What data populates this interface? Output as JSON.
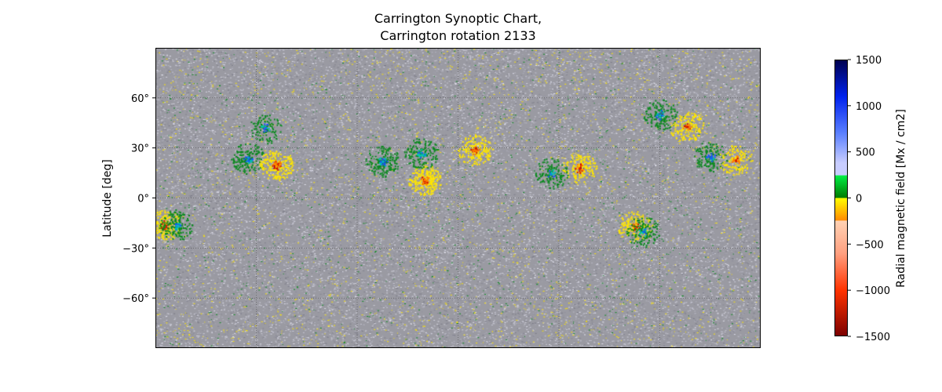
{
  "chart_data": {
    "type": "heatmap",
    "title_lines": [
      "Carrington Synoptic Chart,",
      "Carrington rotation 2133"
    ],
    "ylabel": "Latitude [deg]",
    "xlabel": "",
    "y_ticks": [
      {
        "value": 60,
        "label": "60°"
      },
      {
        "value": 30,
        "label": "30°"
      },
      {
        "value": 0,
        "label": "0°"
      },
      {
        "value": -30,
        "label": "−30°"
      },
      {
        "value": -60,
        "label": "−60°"
      }
    ],
    "ylim": [
      -90,
      90
    ],
    "xlim": [
      0,
      360
    ],
    "grid": true,
    "colorbar": {
      "label": "Radial magnetic field [Mx / cm2]",
      "range": [
        -1500,
        1500
      ],
      "ticks": [
        {
          "value": 1500,
          "label": "1500"
        },
        {
          "value": 1000,
          "label": "1000"
        },
        {
          "value": 500,
          "label": "500"
        },
        {
          "value": 0,
          "label": "0"
        },
        {
          "value": -500,
          "label": "−500"
        },
        {
          "value": -1000,
          "label": "−1000"
        },
        {
          "value": -1500,
          "label": "−1500"
        }
      ],
      "color_stops": [
        {
          "value": 1500,
          "color": "#00004c"
        },
        {
          "value": 1100,
          "color": "#0022ee"
        },
        {
          "value": 700,
          "color": "#5b80ff"
        },
        {
          "value": 380,
          "color": "#c8cdff"
        },
        {
          "value": 250,
          "color": "#c8cdff"
        },
        {
          "value": 240,
          "color": "#00ee44"
        },
        {
          "value": 0,
          "color": "#007a00"
        },
        {
          "value": 0,
          "color": "#ffff00"
        },
        {
          "value": -240,
          "color": "#ff8c00"
        },
        {
          "value": -250,
          "color": "#ffd2b4"
        },
        {
          "value": -600,
          "color": "#ffa080"
        },
        {
          "value": -1000,
          "color": "#ff3300"
        },
        {
          "value": -1500,
          "color": "#7a0000"
        }
      ]
    },
    "background_color": "#9a9aa2",
    "positive_color": "#0a8a1e",
    "negative_color": "#ffe600",
    "active_regions": [
      {
        "lon": 55,
        "lat": 24,
        "polarity": "positive",
        "strength": 0.6
      },
      {
        "lon": 72,
        "lat": 20,
        "polarity": "negative",
        "strength": 0.8
      },
      {
        "lon": 135,
        "lat": 22,
        "polarity": "positive",
        "strength": 0.7
      },
      {
        "lon": 160,
        "lat": 11,
        "polarity": "negative",
        "strength": 0.9
      },
      {
        "lon": 158,
        "lat": 27,
        "polarity": "positive",
        "strength": 0.6
      },
      {
        "lon": 190,
        "lat": 29,
        "polarity": "negative",
        "strength": 0.7
      },
      {
        "lon": 235,
        "lat": 15,
        "polarity": "positive",
        "strength": 0.5
      },
      {
        "lon": 252,
        "lat": 18,
        "polarity": "negative",
        "strength": 0.6
      },
      {
        "lon": 300,
        "lat": 50,
        "polarity": "positive",
        "strength": 0.6
      },
      {
        "lon": 316,
        "lat": 43,
        "polarity": "negative",
        "strength": 0.6
      },
      {
        "lon": 330,
        "lat": 25,
        "polarity": "positive",
        "strength": 0.5
      },
      {
        "lon": 345,
        "lat": 23,
        "polarity": "negative",
        "strength": 0.5
      },
      {
        "lon": 5,
        "lat": -16,
        "polarity": "negative",
        "strength": 0.8
      },
      {
        "lon": 12,
        "lat": -16,
        "polarity": "positive",
        "strength": 0.6
      },
      {
        "lon": 285,
        "lat": -17,
        "polarity": "negative",
        "strength": 0.6
      },
      {
        "lon": 65,
        "lat": 42,
        "polarity": "positive",
        "strength": 0.4
      },
      {
        "lon": 290,
        "lat": -20,
        "polarity": "positive",
        "strength": 0.5
      }
    ]
  }
}
